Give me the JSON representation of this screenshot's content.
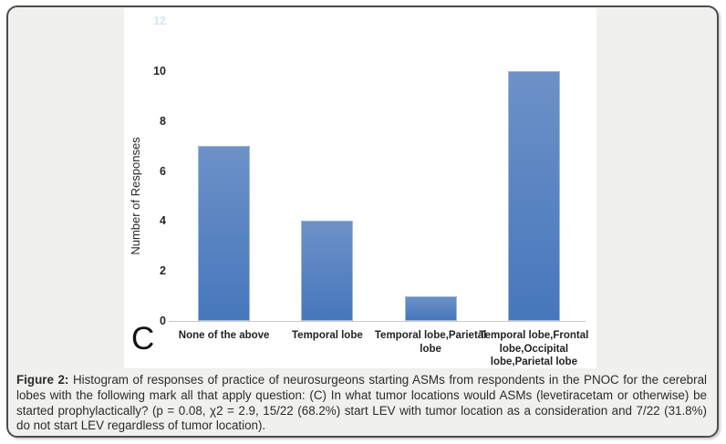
{
  "page": {
    "background": "#ffffff",
    "figure_background": "#f0f0ee",
    "border_color": "#4d4d4d"
  },
  "figure": {
    "panel_label": "C",
    "caption": {
      "label": "Figure 2:",
      "text": " Histogram of responses of practice of neurosurgeons starting ASMs from respondents in the PNOC for the cerebral lobes with the following mark all that apply question: (C) In what tumor locations would ASMs (levetiracetam or otherwise) be started prophylactically? (p = 0.08, χ2 = 2.9, 15/22 (68.2%) start LEV with tumor location as a consideration and 7/22 (31.8%) do not start LEV regardless of tumor location)."
    }
  },
  "chart_data": {
    "type": "bar",
    "title": "",
    "xlabel": "",
    "ylabel": "Number of Responses",
    "categories": [
      "None of the above",
      "Temporal lobe",
      "Temporal lobe,Parietal lobe",
      "Temporal lobe,Frontal lobe,Occipital lobe,Parietal lobe"
    ],
    "category_display_lines": [
      [
        "None of the above"
      ],
      [
        "Temporal lobe"
      ],
      [
        "Temporal lobe,Parietal",
        "lobe"
      ],
      [
        "Temporal lobe,Frontal",
        "lobe,Occipital",
        "lobe,Parietal lobe"
      ]
    ],
    "values": [
      7,
      4,
      1,
      10
    ],
    "ylim": [
      0,
      12
    ],
    "yticks": [
      0,
      2,
      4,
      6,
      8,
      10
    ],
    "faint_top_tick": 12,
    "grid": false,
    "legend": false,
    "bar_color_top": "#6d91c7",
    "bar_color_bottom": "#4677bc",
    "axis_line_color": "#c9c9c9"
  }
}
